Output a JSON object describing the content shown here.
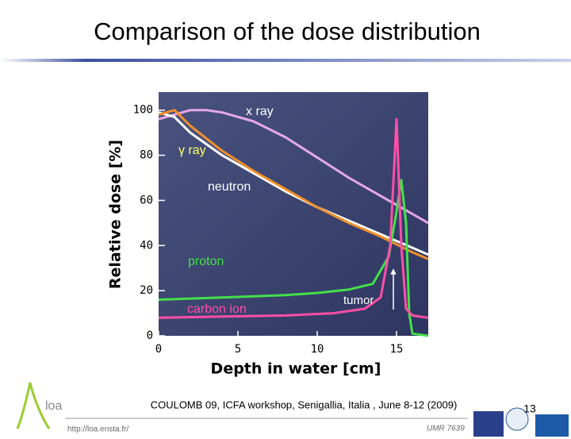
{
  "chart_data": {
    "type": "line",
    "title": "Comparison of the dose distribution",
    "x_label": "Depth in water [cm]",
    "y_label": "Relative dose [%]",
    "xlim": [
      0,
      17
    ],
    "ylim": [
      0,
      108
    ],
    "xticks": [
      0,
      5,
      10,
      15
    ],
    "yticks": [
      0,
      20,
      40,
      60,
      80,
      100
    ],
    "annotation": "tumor",
    "series": [
      {
        "name": "x ray",
        "color": "#e6a8e8",
        "x": [
          0,
          1,
          2,
          3,
          4,
          6,
          8,
          10,
          12,
          14,
          16,
          17
        ],
        "values": [
          96,
          98,
          100,
          100,
          99,
          95,
          88,
          79,
          70,
          62,
          54,
          50
        ]
      },
      {
        "name": "γ ray",
        "color": "#ffffff",
        "x": [
          0,
          1,
          2,
          4,
          6,
          8,
          10,
          12,
          14,
          16,
          17
        ],
        "values": [
          99,
          97,
          90,
          80,
          72,
          64,
          57,
          51,
          45,
          39,
          36
        ]
      },
      {
        "name": "neutron",
        "color": "#f0902a",
        "x": [
          0,
          1,
          2,
          4,
          6,
          8,
          10,
          12,
          14,
          16,
          17
        ],
        "values": [
          98,
          100,
          93,
          82,
          73,
          65,
          57,
          50,
          44,
          37,
          34
        ]
      },
      {
        "name": "proton",
        "color": "#44e04a",
        "x": [
          0,
          2,
          4,
          6,
          8,
          10,
          12,
          13.5,
          14.5,
          15,
          15.3,
          15.6,
          15.8,
          16,
          17
        ],
        "values": [
          16,
          16.5,
          17,
          17.5,
          18,
          19,
          20.5,
          23,
          35,
          55,
          69,
          50,
          10,
          1,
          0
        ]
      },
      {
        "name": "carbon ion",
        "color": "#ff4fa6",
        "x": [
          0,
          4,
          8,
          11,
          13,
          14,
          14.6,
          15,
          15.3,
          15.6,
          16,
          17
        ],
        "values": [
          8,
          8.5,
          9,
          10,
          12,
          17,
          40,
          96,
          40,
          12,
          9,
          8
        ]
      }
    ]
  },
  "slide": {
    "citation": "COULOMB 09, ICFA workshop, Senigallia, Italia , June 8-12 (2009)",
    "url": "http://loa.ensta.fr/",
    "lab": "UMR 7639",
    "page": "13",
    "logo": "loa"
  }
}
